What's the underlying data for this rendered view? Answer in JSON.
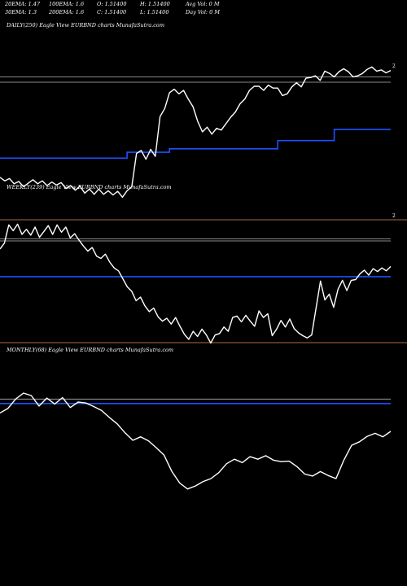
{
  "header": {
    "row1": [
      "20EMA: 1.47",
      "100EMA: 1.6",
      "O: 1.51400",
      "H: 1.51400",
      "Avg Vol: 0  M"
    ],
    "row2": [
      "30EMA: 1.3",
      "200EMA: 1.6",
      "C: 1.51400",
      "L: 1.51400",
      "Day Vol: 0  M"
    ]
  },
  "colors": {
    "background": "#000000",
    "price_line": "#ffffff",
    "ema_line": "#1f4fff",
    "reference_line": "#b4b4b4",
    "separator": "#b06a3a"
  },
  "chart_data": [
    {
      "type": "line",
      "title": "DAILY(250) Eagle  View  EURBND charts MunafaSutra.com",
      "right_label": "2",
      "series": [
        {
          "role": "price",
          "values": [
            186.2,
            185.6,
            186.0,
            185.1,
            185.5,
            184.6,
            185.2,
            185.8,
            185.1,
            185.6,
            184.8,
            185.4,
            184.9,
            185.3,
            184.3,
            184.8,
            184.0,
            184.7,
            183.5,
            184.2,
            183.3,
            184.2,
            183.3,
            183.9,
            183.2,
            183.8,
            182.8,
            183.9,
            184.6,
            190.3,
            190.8,
            189.3,
            191.0,
            189.8,
            196.6,
            198.0,
            200.7,
            201.3,
            200.5,
            201.1,
            199.6,
            198.3,
            195.8,
            194.0,
            194.8,
            193.6,
            194.6,
            194.3,
            195.4,
            196.5,
            197.4,
            198.8,
            199.6,
            201.1,
            201.8,
            201.8,
            201.1,
            202.0,
            201.5,
            201.5,
            200.2,
            200.5,
            201.7,
            202.4,
            201.7,
            203.2,
            203.3,
            203.6,
            202.8,
            204.4,
            204.0,
            203.4,
            204.3,
            204.8,
            204.3,
            203.4,
            203.6,
            204.0,
            204.7,
            205.1,
            204.4,
            204.6,
            204.1,
            204.5
          ],
          "count_note": "daily closes, oldest to newest"
        },
        {
          "role": "ema",
          "segments": [
            {
              "from": 0,
              "to": 26,
              "value": 189.5
            },
            {
              "from": 27,
              "to": 35,
              "value": 190.5
            },
            {
              "from": 36,
              "to": 58,
              "value": 191.1
            },
            {
              "from": 59,
              "to": 70,
              "value": 192.5
            },
            {
              "from": 71,
              "to": 83,
              "value": 194.4
            }
          ]
        }
      ],
      "reference_lines": [
        203.4,
        202.5
      ],
      "ylim": [
        179.5,
        211.0
      ]
    },
    {
      "type": "line",
      "title": "WEEKLY(239) Eagle  View  EURBND charts MunafaSutra.com",
      "right_label": "2",
      "series": [
        {
          "role": "price",
          "values": [
            158.2,
            159.0,
            161.5,
            160.7,
            161.6,
            160.2,
            160.9,
            160.1,
            161.2,
            159.8,
            160.6,
            161.4,
            160.2,
            161.5,
            160.5,
            161.2,
            159.7,
            160.3,
            159.4,
            158.6,
            157.9,
            158.4,
            157.2,
            156.9,
            157.5,
            156.4,
            155.6,
            155.2,
            154.1,
            153.0,
            152.4,
            151.1,
            151.6,
            150.4,
            149.6,
            150.1,
            148.9,
            148.3,
            148.7,
            147.9,
            148.8,
            147.6,
            146.5,
            145.8,
            146.9,
            146.2,
            147.2,
            146.4,
            145.3,
            146.4,
            146.6,
            147.5,
            146.9,
            148.8,
            149.0,
            148.2,
            149.1,
            148.3,
            147.6,
            149.7,
            148.8,
            149.3,
            146.3,
            147.2,
            148.4,
            147.5,
            148.6,
            147.3,
            146.7,
            146.3,
            146.0,
            146.4,
            150.1,
            153.8,
            151.2,
            152.0,
            150.2,
            152.7,
            153.9,
            152.5,
            153.9,
            154.0,
            154.8,
            155.3,
            154.6,
            155.5,
            155.1,
            155.6,
            155.2,
            155.8
          ]
        }
      ],
      "reference_lines": [
        159.6,
        159.3,
        154.4
      ],
      "ylim": [
        141.0,
        166.0
      ]
    },
    {
      "type": "line",
      "title": "MONTHLY(68) Eagle  View  EURBND charts MunafaSutra.com",
      "series": [
        {
          "role": "price",
          "values": [
            124.4,
            125.3,
            127.2,
            128.4,
            127.9,
            125.8,
            127.4,
            126.2,
            127.5,
            125.5,
            126.6,
            126.4,
            125.7,
            124.9,
            123.5,
            122.2,
            120.4,
            118.9,
            119.6,
            118.8,
            117.4,
            115.9,
            112.6,
            110.3,
            109.1,
            109.7,
            110.6,
            111.2,
            112.4,
            114.2,
            115.1,
            114.4,
            115.6,
            115.1,
            115.8,
            114.9,
            114.6,
            114.7,
            113.6,
            112.1,
            111.7,
            112.6,
            111.8,
            111.2,
            114.9,
            117.9,
            118.6,
            119.7,
            120.3,
            119.6,
            120.7
          ],
          "count_note": "monthly closes"
        }
      ],
      "reference_lines": [
        127.2,
        126.3
      ],
      "ylim": [
        99.4,
        136.1
      ]
    }
  ]
}
